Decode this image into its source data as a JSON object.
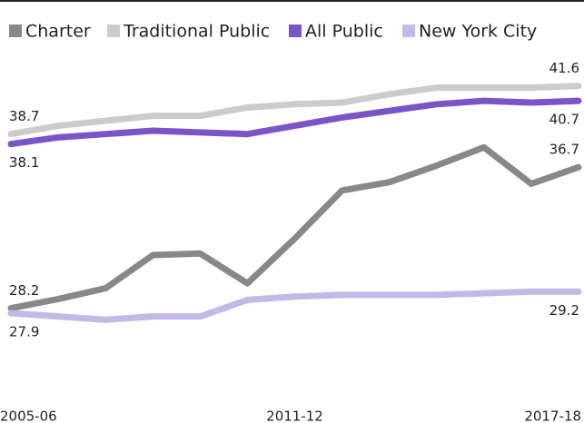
{
  "chart_data": {
    "type": "line",
    "categories": [
      "2005-06",
      null,
      null,
      null,
      null,
      null,
      "2011-12",
      null,
      null,
      null,
      null,
      null,
      "2017-18"
    ],
    "series": [
      {
        "name": "Charter",
        "color": "#888888",
        "values": [
          28.2,
          28.75,
          29.4,
          31.4,
          31.5,
          29.7,
          32.4,
          35.3,
          35.8,
          36.8,
          37.9,
          35.7,
          36.7
        ]
      },
      {
        "name": "Traditional Public",
        "color": "#cccccc",
        "values": [
          38.7,
          39.2,
          39.5,
          39.8,
          39.8,
          40.3,
          40.5,
          40.6,
          41.1,
          41.5,
          41.5,
          41.5,
          41.6
        ]
      },
      {
        "name": "All Public",
        "color": "#7b55c7",
        "values": [
          38.1,
          38.5,
          38.7,
          38.9,
          38.8,
          38.7,
          39.2,
          39.7,
          40.1,
          40.5,
          40.7,
          40.6,
          40.7
        ]
      },
      {
        "name": "New York City",
        "color": "#c3b8e6",
        "values": [
          27.9,
          27.7,
          27.5,
          27.7,
          27.7,
          28.7,
          28.9,
          29.0,
          29.0,
          29.0,
          29.1,
          29.2,
          29.2
        ]
      }
    ],
    "ylim": [
      22.7,
      43.5
    ]
  }
}
